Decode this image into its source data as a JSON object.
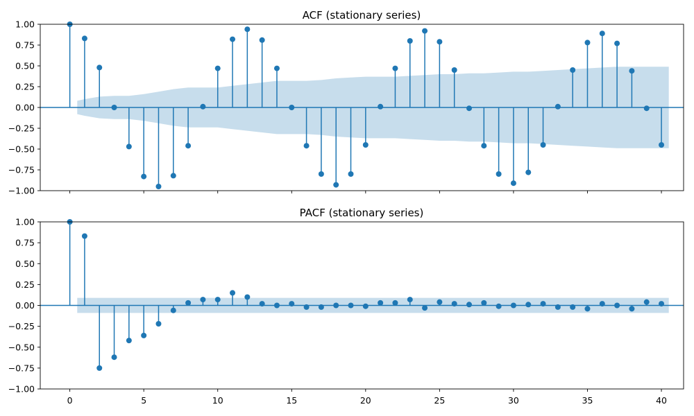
{
  "colors": {
    "stem": "#1f77b4",
    "band": "#1f77b4",
    "axis": "#000000",
    "background": "#ffffff"
  },
  "x_ticks": [
    "0",
    "5",
    "10",
    "15",
    "20",
    "25",
    "30",
    "35",
    "40"
  ],
  "chart_data": [
    {
      "type": "stem",
      "title": "ACF (stationary series)",
      "xlim": [
        -2,
        41.5
      ],
      "ylim": [
        -1.0,
        1.0
      ],
      "x_tick_labels_visible": false,
      "y_ticks": [
        "1.00",
        "0.75",
        "0.50",
        "0.25",
        "0.00",
        "−0.25",
        "−0.50",
        "−0.75",
        "−1.00"
      ],
      "lags": [
        0,
        1,
        2,
        3,
        4,
        5,
        6,
        7,
        8,
        9,
        10,
        11,
        12,
        13,
        14,
        15,
        16,
        17,
        18,
        19,
        20,
        21,
        22,
        23,
        24,
        25,
        26,
        27,
        28,
        29,
        30,
        31,
        32,
        33,
        34,
        35,
        36,
        37,
        38,
        39,
        40
      ],
      "values": [
        1.0,
        0.83,
        0.48,
        0.0,
        -0.47,
        -0.83,
        -0.95,
        -0.82,
        -0.46,
        0.01,
        0.47,
        0.82,
        0.94,
        0.81,
        0.47,
        0.0,
        -0.46,
        -0.8,
        -0.93,
        -0.8,
        -0.45,
        0.01,
        0.47,
        0.8,
        0.92,
        0.79,
        0.45,
        -0.01,
        -0.46,
        -0.8,
        -0.91,
        -0.78,
        -0.45,
        0.01,
        0.45,
        0.78,
        0.89,
        0.77,
        0.44,
        -0.01,
        -0.45
      ],
      "confidence_band": {
        "lags": [
          0.5,
          1,
          2,
          3,
          4,
          5,
          6,
          7,
          8,
          9,
          10,
          11,
          12,
          13,
          14,
          15,
          16,
          17,
          18,
          19,
          20,
          21,
          22,
          23,
          24,
          25,
          26,
          27,
          28,
          29,
          30,
          31,
          32,
          33,
          34,
          35,
          36,
          37,
          38,
          39,
          40,
          40.5
        ],
        "half_width": [
          0.08,
          0.1,
          0.13,
          0.14,
          0.14,
          0.16,
          0.19,
          0.22,
          0.24,
          0.24,
          0.24,
          0.26,
          0.28,
          0.3,
          0.32,
          0.32,
          0.32,
          0.33,
          0.35,
          0.36,
          0.37,
          0.37,
          0.37,
          0.38,
          0.39,
          0.4,
          0.4,
          0.41,
          0.41,
          0.42,
          0.43,
          0.43,
          0.44,
          0.45,
          0.46,
          0.47,
          0.48,
          0.49,
          0.49,
          0.49,
          0.49,
          0.49
        ]
      }
    },
    {
      "type": "stem",
      "title": "PACF (stationary series)",
      "xlim": [
        -2,
        41.5
      ],
      "ylim": [
        -1.0,
        1.0
      ],
      "x_tick_labels_visible": true,
      "y_ticks": [
        "1.00",
        "0.75",
        "0.50",
        "0.25",
        "0.00",
        "−0.25",
        "−0.50",
        "−0.75",
        "−1.00"
      ],
      "lags": [
        0,
        1,
        2,
        3,
        4,
        5,
        6,
        7,
        8,
        9,
        10,
        11,
        12,
        13,
        14,
        15,
        16,
        17,
        18,
        19,
        20,
        21,
        22,
        23,
        24,
        25,
        26,
        27,
        28,
        29,
        30,
        31,
        32,
        33,
        34,
        35,
        36,
        37,
        38,
        39,
        40
      ],
      "values": [
        1.0,
        0.83,
        -0.75,
        -0.62,
        -0.42,
        -0.36,
        -0.22,
        -0.06,
        0.03,
        0.07,
        0.07,
        0.15,
        0.1,
        0.02,
        0.0,
        0.02,
        -0.02,
        -0.02,
        0.0,
        0.0,
        -0.01,
        0.03,
        0.03,
        0.07,
        -0.03,
        0.04,
        0.02,
        0.01,
        0.03,
        -0.01,
        0.0,
        0.01,
        0.02,
        -0.02,
        -0.02,
        -0.04,
        0.02,
        0.0,
        -0.04,
        0.04,
        0.02
      ],
      "confidence_band": {
        "lags": [
          0.5,
          40.5
        ],
        "half_width": [
          0.09,
          0.09
        ]
      }
    }
  ]
}
